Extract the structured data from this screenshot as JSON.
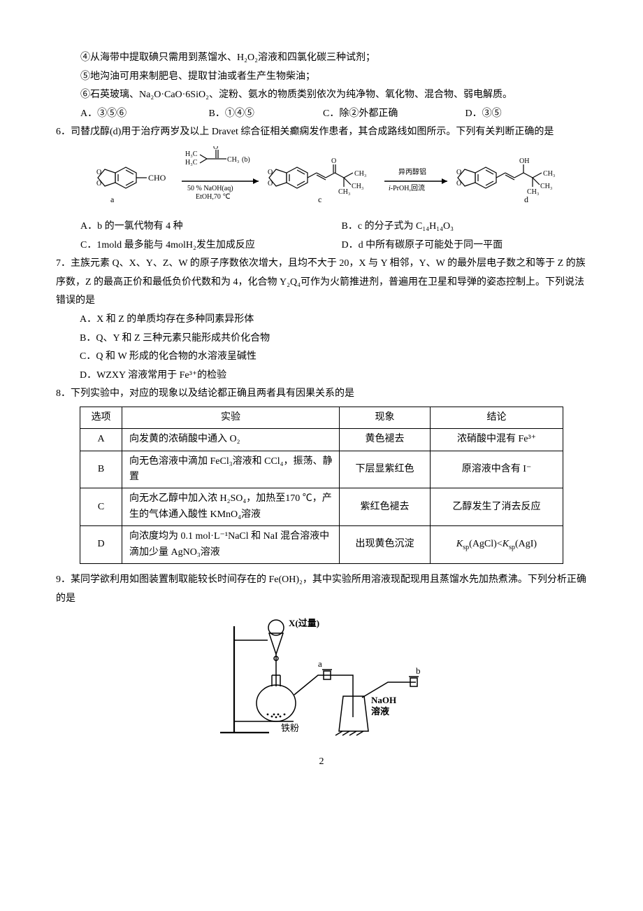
{
  "q5rest": {
    "line4": "④从海带中提取碘只需用到蒸馏水、H₂O₂溶液和四氯化碳三种试剂；",
    "line5": "⑤地沟油可用来制肥皂、提取甘油或者生产生物柴油；",
    "line6": "⑥石英玻璃、Na₂O·CaO·6SiO₂、淀粉、氨水的物质类别依次为纯净物、氧化物、混合物、弱电解质。",
    "optA": "A．③⑤⑥",
    "optB": "B．①④⑤",
    "optC": "C．除②外都正确",
    "optD": "D．③⑤"
  },
  "q6": {
    "stem": "6．司替戊醇(d)用于治疗两岁及以上 Dravet 综合征相关癫痫发作患者，其合成路线如图所示。下列有关判断正确的是",
    "chem": {
      "labels": {
        "a": "a",
        "b": "(b)",
        "c": "c",
        "d": "d"
      },
      "frag_a": "CHO",
      "reag1_top": "H₃C",
      "reag1_mol": "C",
      "reag1_branch": "CH₃",
      "reag1_right": "CH₃",
      "cond1a": "50 % NaOH(aq)",
      "cond1b": "EtOH,70 ℃",
      "frag_c_O": "O",
      "frag_c_CH3a": "CH₃",
      "frag_c_CH3b": "CH₃",
      "frag_c_CH3c": "CH₃",
      "reag2a": "异丙醇铝",
      "reag2b": "i-PrOH,回流",
      "iprefix": "i",
      "frag_d_OH": "OH",
      "frag_d_CH3a": "CH₃",
      "frag_d_CH3b": "CH₃",
      "frag_d_CH3c": "CH₃",
      "methylenedioxy": "O"
    },
    "optA": "A．b 的一氯代物有 4 种",
    "optB": "B．c 的分子式为 C₁₄H₁₄O₃",
    "optC": "C．1mold 最多能与 4molH₂发生加成反应",
    "optD": "D．d 中所有碳原子可能处于同一平面"
  },
  "q7": {
    "stem": "7．主族元素 Q、X、Y、Z、W 的原子序数依次增大，且均不大于 20，X 与 Y 相邻，Y、W 的最外层电子数之和等于 Z 的族序数，Z 的最高正价和最低负价代数和为 4，化合物 Y₂Q₄可作为火箭推进剂，普遍用在卫星和导弹的姿态控制上。下列说法错误的是",
    "optA": "A．X 和 Z 的单质均存在多种同素异形体",
    "optB": "B．Q、Y 和 Z 三种元素只能形成共价化合物",
    "optC": "C．Q 和 W 形成的化合物的水溶液呈碱性",
    "optD": "D．WZXY 溶液常用于 Fe³⁺的检验"
  },
  "q8": {
    "stem": "8．下列实验中，对应的现象以及结论都正确且两者具有因果关系的是",
    "headers": {
      "opt": "选项",
      "exp": "实验",
      "phen": "现象",
      "conc": "结论"
    },
    "rows": [
      {
        "opt": "A",
        "exp": "向发黄的浓硝酸中通入 O₂",
        "phen": "黄色褪去",
        "conc": "浓硝酸中混有 Fe³⁺"
      },
      {
        "opt": "B",
        "exp": "向无色溶液中滴加 FeCl₃溶液和 CCl₄，振荡、静置",
        "phen": "下层显紫红色",
        "conc": "原溶液中含有 I⁻"
      },
      {
        "opt": "C",
        "exp": "向无水乙醇中加入浓 H₂SO₄，加热至170 ℃，产生的气体通入酸性 KMnO₄溶液",
        "phen": "紫红色褪去",
        "conc": "乙醇发生了消去反应"
      },
      {
        "opt": "D",
        "exp": "向浓度均为 0.1 mol·L⁻¹NaCl 和 NaI 混合溶液中滴加少量 AgNO₃溶液",
        "phen": "出现黄色沉淀",
        "conc": "<span class=\"italic\">K</span><sub>sp</sub>(AgCl)&lt;<span class=\"italic\">K</span><sub>sp</sub>(AgI)"
      }
    ],
    "col_widths": {
      "opt": "60px",
      "exp": "auto",
      "phen": "130px",
      "conc": "190px"
    }
  },
  "q9": {
    "stem": "9．某同学欲利用如图装置制取能较长时间存在的 Fe(OH)₂，其中实验所用溶液现配现用且蒸馏水先加热煮沸。下列分析正确的是",
    "fig": {
      "x_label": "X(过量)",
      "a_label": "a",
      "b_label": "b",
      "naoh1": "NaOH",
      "naoh2": "溶液",
      "fe": "铁粉"
    }
  },
  "pagenum": "2",
  "colors": {
    "text": "#000000",
    "bg": "#ffffff",
    "border": "#000000"
  }
}
